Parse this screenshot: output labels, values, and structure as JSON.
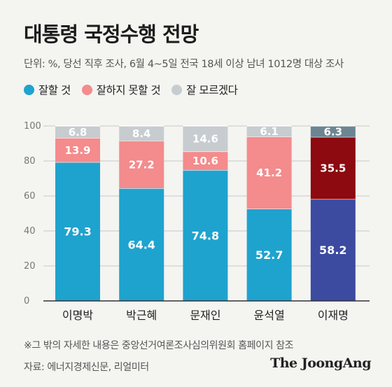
{
  "header": {
    "title": "대통령 국정수행 전망",
    "subtitle": "단위: %, 당선 직후 조사, 6월 4~5일 전국 18세 이상 남녀 1012명 대상 조사"
  },
  "legend": [
    {
      "label": "잘할 것",
      "color": "#1ea3cf"
    },
    {
      "label": "잘하지 못할 것",
      "color": "#f48b8c"
    },
    {
      "label": "잘 모르겠다",
      "color": "#c7ccd0"
    }
  ],
  "chart_data": {
    "type": "bar",
    "stacked": true,
    "categories": [
      "이명박",
      "박근혜",
      "문재인",
      "윤석열",
      "이재명"
    ],
    "series": [
      {
        "name": "잘할 것",
        "values": [
          79.3,
          64.4,
          74.8,
          52.7,
          58.2
        ]
      },
      {
        "name": "잘하지 못할 것",
        "values": [
          13.9,
          27.2,
          10.6,
          41.2,
          35.5
        ]
      },
      {
        "name": "잘 모르겠다",
        "values": [
          6.8,
          8.4,
          14.6,
          6.1,
          6.3
        ]
      }
    ],
    "colors": {
      "default": [
        "#1ea3cf",
        "#f48b8c",
        "#c7ccd0"
      ],
      "highlight": [
        "#3c4aa0",
        "#8c0a10",
        "#6d8591"
      ],
      "highlight_index": 4
    },
    "yticks": [
      0,
      20,
      40,
      60,
      80,
      100
    ],
    "ylim": [
      0,
      100
    ],
    "grid": true
  },
  "footer": {
    "note": "※그 밖의 자세한 내용은 중앙선거여론조사심의위원회 홈페이지 참조",
    "source": "자료: 에너지경제신문, 리얼미터",
    "brand": "The JoongAng"
  }
}
